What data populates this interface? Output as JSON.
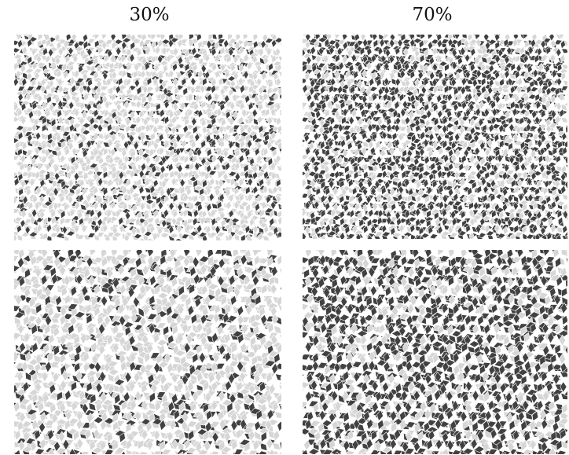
{
  "columns": [
    {
      "label": "30%",
      "fraction": 0.3
    },
    {
      "label": "70%",
      "fraction": 0.7
    }
  ],
  "rows": [
    {
      "tile_scale": "small"
    },
    {
      "tile_scale": "large"
    }
  ],
  "colors": {
    "dark_tile": "#414141",
    "light_tile": "#d6d6d6",
    "tile_edge": "#ffffff",
    "background": "#ffffff"
  }
}
